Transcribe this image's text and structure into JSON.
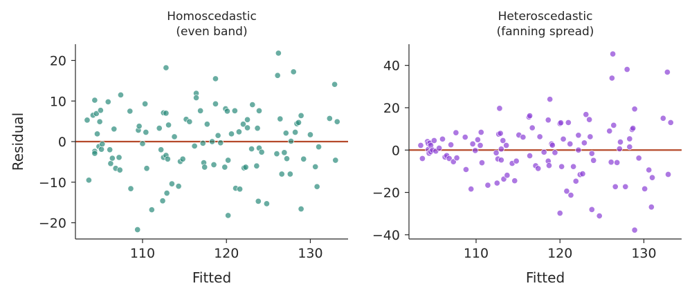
{
  "chart_data": [
    {
      "type": "scatter",
      "title": "Homoscedastic\n(even band)",
      "xlabel": "Fitted",
      "ylabel": "Residual",
      "xlim": [
        102,
        134.5
      ],
      "ylim": [
        -24,
        24
      ],
      "xticks": [
        110,
        120,
        130
      ],
      "yticks": [
        -20,
        -10,
        0,
        10,
        20
      ],
      "xtick_labels": [
        "110",
        "120",
        "130"
      ],
      "ytick_labels": [
        "−20",
        "−10",
        "0",
        "10",
        "20"
      ],
      "reference_line_y": 0,
      "point_color": "#2a8a7a",
      "line_color": "#b5492a",
      "points": [
        [
          103.4,
          5.3
        ],
        [
          103.6,
          -9.5
        ],
        [
          104.1,
          6.5
        ],
        [
          104.3,
          10.2
        ],
        [
          104.3,
          -2.4
        ],
        [
          104.3,
          -2.9
        ],
        [
          104.5,
          6.9
        ],
        [
          104.6,
          1.9
        ],
        [
          104.8,
          -1.2
        ],
        [
          104.9,
          4.9
        ],
        [
          105.0,
          7.7
        ],
        [
          105.1,
          -1.9
        ],
        [
          105.2,
          -0.6
        ],
        [
          105.9,
          9.8
        ],
        [
          106.1,
          -2.0
        ],
        [
          106.2,
          -5.4
        ],
        [
          106.4,
          -4.1
        ],
        [
          106.6,
          3.1
        ],
        [
          106.8,
          -6.6
        ],
        [
          107.2,
          -3.9
        ],
        [
          107.3,
          -7.0
        ],
        [
          107.4,
          11.5
        ],
        [
          108.5,
          7.5
        ],
        [
          108.6,
          -11.6
        ],
        [
          109.4,
          -21.7
        ],
        [
          109.5,
          2.8
        ],
        [
          109.6,
          3.8
        ],
        [
          110.0,
          -0.5
        ],
        [
          110.3,
          9.3
        ],
        [
          110.4,
          2.3
        ],
        [
          110.5,
          -6.6
        ],
        [
          111.1,
          -16.8
        ],
        [
          112.0,
          3.3
        ],
        [
          112.2,
          -2.0
        ],
        [
          112.4,
          -14.6
        ],
        [
          112.5,
          7.1
        ],
        [
          112.5,
          -3.9
        ],
        [
          112.8,
          18.2
        ],
        [
          112.8,
          7.0
        ],
        [
          112.8,
          -3.4
        ],
        [
          112.9,
          -12.7
        ],
        [
          113.0,
          -4.3
        ],
        [
          113.1,
          4.1
        ],
        [
          113.5,
          -10.4
        ],
        [
          113.8,
          1.2
        ],
        [
          114.3,
          -11.0
        ],
        [
          114.5,
          -4.9
        ],
        [
          114.8,
          -4.3
        ],
        [
          115.2,
          5.5
        ],
        [
          115.6,
          4.9
        ],
        [
          116.2,
          -1.1
        ],
        [
          116.4,
          11.9
        ],
        [
          116.4,
          10.8
        ],
        [
          116.9,
          7.6
        ],
        [
          117.2,
          -0.4
        ],
        [
          117.3,
          -5.2
        ],
        [
          117.4,
          -6.3
        ],
        [
          117.7,
          4.3
        ],
        [
          118.3,
          0.0
        ],
        [
          118.5,
          -5.7
        ],
        [
          118.7,
          15.5
        ],
        [
          118.7,
          9.3
        ],
        [
          119.0,
          1.5
        ],
        [
          119.3,
          -0.3
        ],
        [
          119.8,
          -6.3
        ],
        [
          119.9,
          8.1
        ],
        [
          120.1,
          7.5
        ],
        [
          120.2,
          -4.6
        ],
        [
          120.2,
          -18.2
        ],
        [
          120.6,
          1.9
        ],
        [
          121.0,
          7.6
        ],
        [
          121.1,
          -11.5
        ],
        [
          121.6,
          -11.7
        ],
        [
          121.5,
          2.4
        ],
        [
          122.0,
          4.3
        ],
        [
          122.1,
          -6.5
        ],
        [
          122.3,
          -6.3
        ],
        [
          122.5,
          5.4
        ],
        [
          122.5,
          3.4
        ],
        [
          123.0,
          -1.8
        ],
        [
          123.1,
          9.1
        ],
        [
          123.6,
          -6.0
        ],
        [
          123.7,
          3.3
        ],
        [
          123.8,
          -14.7
        ],
        [
          123.9,
          7.6
        ],
        [
          123.9,
          -1.6
        ],
        [
          124.2,
          -2.6
        ],
        [
          124.8,
          -15.3
        ],
        [
          126.0,
          -3.0
        ],
        [
          126.1,
          16.3
        ],
        [
          126.2,
          21.8
        ],
        [
          126.4,
          5.6
        ],
        [
          126.6,
          -8.0
        ],
        [
          126.9,
          -2.7
        ],
        [
          127.1,
          2.1
        ],
        [
          127.2,
          -4.2
        ],
        [
          127.6,
          -8.0
        ],
        [
          127.7,
          0.1
        ],
        [
          128.0,
          17.2
        ],
        [
          128.2,
          2.3
        ],
        [
          128.4,
          4.4
        ],
        [
          128.6,
          4.7
        ],
        [
          128.9,
          6.4
        ],
        [
          128.9,
          -16.6
        ],
        [
          129.2,
          -4.3
        ],
        [
          130.0,
          1.7
        ],
        [
          130.6,
          -6.2
        ],
        [
          130.8,
          -11.1
        ],
        [
          131.0,
          -1.3
        ],
        [
          132.3,
          5.7
        ],
        [
          132.9,
          14.1
        ],
        [
          133.0,
          -4.6
        ],
        [
          133.2,
          4.9
        ]
      ]
    },
    {
      "type": "scatter",
      "title": "Heteroscedastic\n(fanning spread)",
      "xlabel": "Fitted",
      "ylabel": "",
      "xlim": [
        102,
        134.5
      ],
      "ylim": [
        -42,
        50
      ],
      "xticks": [
        110,
        120,
        130
      ],
      "yticks": [
        -40,
        -20,
        0,
        20,
        40
      ],
      "xtick_labels": [
        "110",
        "120",
        "130"
      ],
      "ytick_labels": [
        "−40",
        "−20",
        "0",
        "20",
        "40"
      ],
      "reference_line_y": 0,
      "point_color": "#8a3fd6",
      "line_color": "#b5492a",
      "points": [
        [
          103.4,
          2.2
        ],
        [
          103.6,
          -4.0
        ],
        [
          104.2,
          4.0
        ],
        [
          104.3,
          3.1
        ],
        [
          104.3,
          0.3
        ],
        [
          104.4,
          -1.5
        ],
        [
          104.5,
          3.3
        ],
        [
          104.6,
          2.2
        ],
        [
          104.6,
          -0.8
        ],
        [
          104.8,
          0.0
        ],
        [
          105.0,
          4.5
        ],
        [
          105.2,
          -0.5
        ],
        [
          105.6,
          0.9
        ],
        [
          106.0,
          5.2
        ],
        [
          106.3,
          -3.3
        ],
        [
          106.5,
          -2.6
        ],
        [
          106.8,
          -4.0
        ],
        [
          107.0,
          2.5
        ],
        [
          107.3,
          -5.5
        ],
        [
          107.6,
          8.2
        ],
        [
          107.7,
          -3.7
        ],
        [
          108.7,
          6.1
        ],
        [
          108.8,
          -9.2
        ],
        [
          109.4,
          -18.4
        ],
        [
          109.6,
          2.9
        ],
        [
          109.9,
          -0.2
        ],
        [
          110.2,
          4.9
        ],
        [
          110.5,
          2.2
        ],
        [
          110.6,
          8.4
        ],
        [
          110.7,
          -6.0
        ],
        [
          111.4,
          -16.6
        ],
        [
          112.4,
          -1.3
        ],
        [
          112.5,
          -15.6
        ],
        [
          112.6,
          -4.2
        ],
        [
          112.7,
          7.5
        ],
        [
          112.8,
          19.7
        ],
        [
          112.9,
          7.9
        ],
        [
          113.0,
          0.5
        ],
        [
          113.0,
          -4.7
        ],
        [
          113.2,
          4.5
        ],
        [
          113.3,
          -13.7
        ],
        [
          113.6,
          2.2
        ],
        [
          113.7,
          -11.9
        ],
        [
          114.3,
          -6.3
        ],
        [
          114.6,
          -14.5
        ],
        [
          114.8,
          -5.2
        ],
        [
          115.1,
          7.1
        ],
        [
          115.6,
          6.1
        ],
        [
          116.3,
          15.6
        ],
        [
          116.4,
          16.2
        ],
        [
          116.4,
          -2.7
        ],
        [
          116.7,
          10.5
        ],
        [
          117.1,
          -7.4
        ],
        [
          117.4,
          -8.7
        ],
        [
          117.6,
          6.3
        ],
        [
          118.1,
          -1.0
        ],
        [
          118.6,
          14.2
        ],
        [
          118.6,
          -5.2
        ],
        [
          118.7,
          -7.3
        ],
        [
          118.8,
          24.0
        ],
        [
          119.0,
          2.9
        ],
        [
          119.1,
          2.3
        ],
        [
          119.4,
          -1.2
        ],
        [
          120.0,
          12.5
        ],
        [
          120.0,
          -29.8
        ],
        [
          120.1,
          12.9
        ],
        [
          120.2,
          -7.8
        ],
        [
          120.4,
          5.2
        ],
        [
          120.8,
          -19.4
        ],
        [
          121.0,
          13.0
        ],
        [
          121.2,
          2.9
        ],
        [
          121.3,
          -21.3
        ],
        [
          121.6,
          -7.8
        ],
        [
          121.9,
          -14.7
        ],
        [
          122.2,
          7.0
        ],
        [
          122.2,
          0.0
        ],
        [
          122.4,
          -11.6
        ],
        [
          122.7,
          -11.2
        ],
        [
          122.9,
          3.4
        ],
        [
          123.1,
          16.8
        ],
        [
          123.5,
          14.4
        ],
        [
          123.6,
          6.3
        ],
        [
          123.8,
          -1.6
        ],
        [
          123.8,
          -28.1
        ],
        [
          124.0,
          -4.9
        ],
        [
          124.7,
          -31.1
        ],
        [
          125.9,
          9.0
        ],
        [
          126.1,
          -5.7
        ],
        [
          126.2,
          34.0
        ],
        [
          126.3,
          45.4
        ],
        [
          126.4,
          11.7
        ],
        [
          126.6,
          -17.3
        ],
        [
          126.8,
          -5.9
        ],
        [
          127.1,
          0.6
        ],
        [
          127.2,
          3.8
        ],
        [
          127.8,
          -17.3
        ],
        [
          128.0,
          38.1
        ],
        [
          128.3,
          1.5
        ],
        [
          128.3,
          5.3
        ],
        [
          128.6,
          9.7
        ],
        [
          128.7,
          10.3
        ],
        [
          128.9,
          19.4
        ],
        [
          128.9,
          -37.8
        ],
        [
          129.4,
          -3.8
        ],
        [
          130.1,
          -18.3
        ],
        [
          130.6,
          -9.4
        ],
        [
          130.9,
          -26.9
        ],
        [
          131.0,
          -13.0
        ],
        [
          132.3,
          15.0
        ],
        [
          132.8,
          36.8
        ],
        [
          132.9,
          -11.5
        ],
        [
          133.2,
          13.0
        ]
      ]
    }
  ]
}
